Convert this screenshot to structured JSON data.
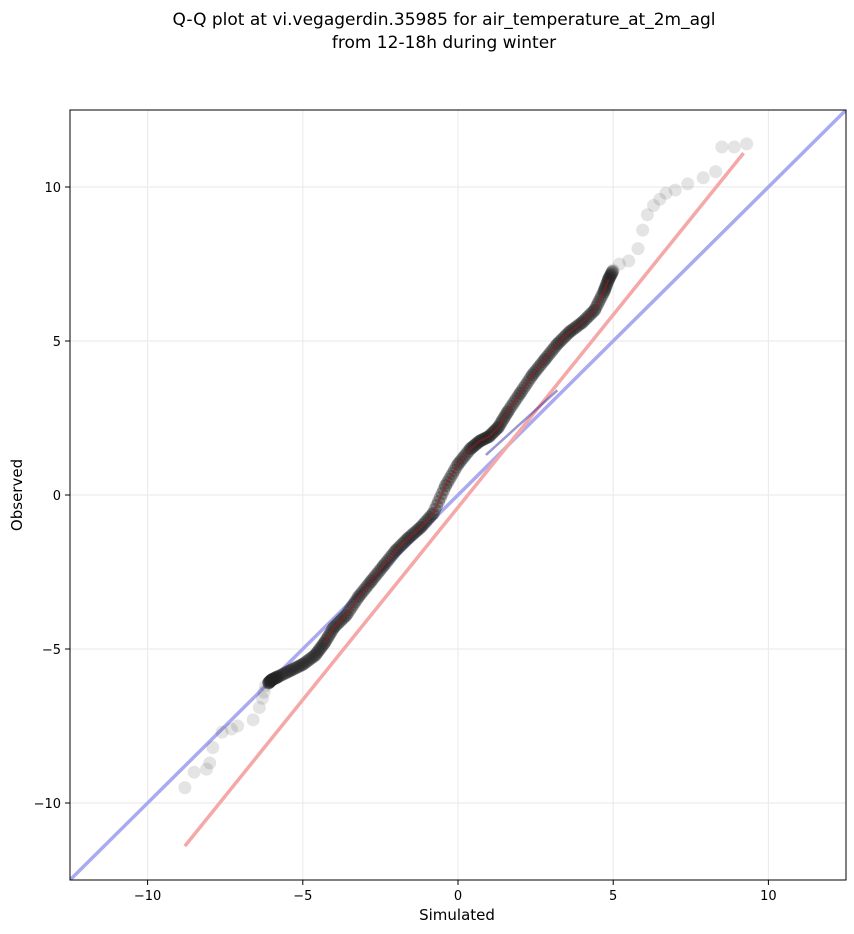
{
  "chart_data": {
    "type": "scatter",
    "title": "Q-Q plot at vi.vegagerdin.35985 for air_temperature_at_2m_agl",
    "subtitle": "from 12-18h during winter",
    "xlabel": "Simulated",
    "ylabel": "Observed",
    "xlim": [
      -12.5,
      12.5
    ],
    "ylim": [
      -12.5,
      12.5
    ],
    "xticks": [
      -10,
      -5,
      0,
      5,
      10
    ],
    "yticks": [
      -10,
      -5,
      0,
      5,
      10
    ],
    "xtick_labels": [
      "−10",
      "−5",
      "0",
      "5",
      "10"
    ],
    "ytick_labels": [
      "−10",
      "−5",
      "0",
      "5",
      "10"
    ],
    "grid": true,
    "legend": "none",
    "colors": {
      "identity_line": "#aaaaf0",
      "fit_line": "#f5a8a8",
      "points": "#222222",
      "inner_blue": "#1a1a9a",
      "inner_red": "#aa1818"
    },
    "reference_lines": [
      {
        "kind": "identity",
        "x": [
          -12.5,
          12.5
        ],
        "y": [
          -12.5,
          12.5
        ]
      },
      {
        "kind": "fit",
        "x": [
          -8.8,
          9.2
        ],
        "y": [
          -11.4,
          11.1
        ]
      }
    ],
    "quantiles": {
      "x": [
        -8.8,
        -8.5,
        -8.1,
        -8.0,
        -7.9,
        -7.6,
        -7.3,
        -7.1,
        -6.6,
        -6.4,
        -6.3,
        -6.25,
        -6.2,
        -6.1,
        -6.0,
        -5.8,
        -5.4,
        -5.0,
        -4.6,
        -4.3,
        -4.0,
        -3.6,
        -3.2,
        -2.8,
        -2.4,
        -2.0,
        -1.6,
        -1.2,
        -0.8,
        -0.4,
        0.0,
        0.4,
        0.7,
        1.0,
        1.3,
        1.6,
        2.0,
        2.4,
        2.8,
        3.2,
        3.6,
        4.0,
        4.4,
        4.7,
        4.85,
        5.0,
        5.2,
        5.5,
        5.8,
        5.95,
        6.1,
        6.3,
        6.5,
        6.7,
        7.0,
        7.4,
        7.9,
        8.3,
        8.5,
        8.9,
        9.3
      ],
      "y": [
        -9.5,
        -9.0,
        -8.9,
        -8.7,
        -8.2,
        -7.7,
        -7.6,
        -7.5,
        -7.3,
        -6.9,
        -6.6,
        -6.4,
        -6.2,
        -6.1,
        -6.0,
        -5.9,
        -5.7,
        -5.5,
        -5.2,
        -4.8,
        -4.3,
        -3.9,
        -3.3,
        -2.8,
        -2.3,
        -1.8,
        -1.4,
        -1.05,
        -0.6,
        0.3,
        1.0,
        1.5,
        1.75,
        1.9,
        2.2,
        2.7,
        3.3,
        3.9,
        4.4,
        4.9,
        5.3,
        5.6,
        6.0,
        6.6,
        7.0,
        7.3,
        7.5,
        7.6,
        8.0,
        8.6,
        9.1,
        9.4,
        9.6,
        9.8,
        9.9,
        10.1,
        10.3,
        10.5,
        11.3,
        11.3,
        11.4
      ]
    }
  }
}
